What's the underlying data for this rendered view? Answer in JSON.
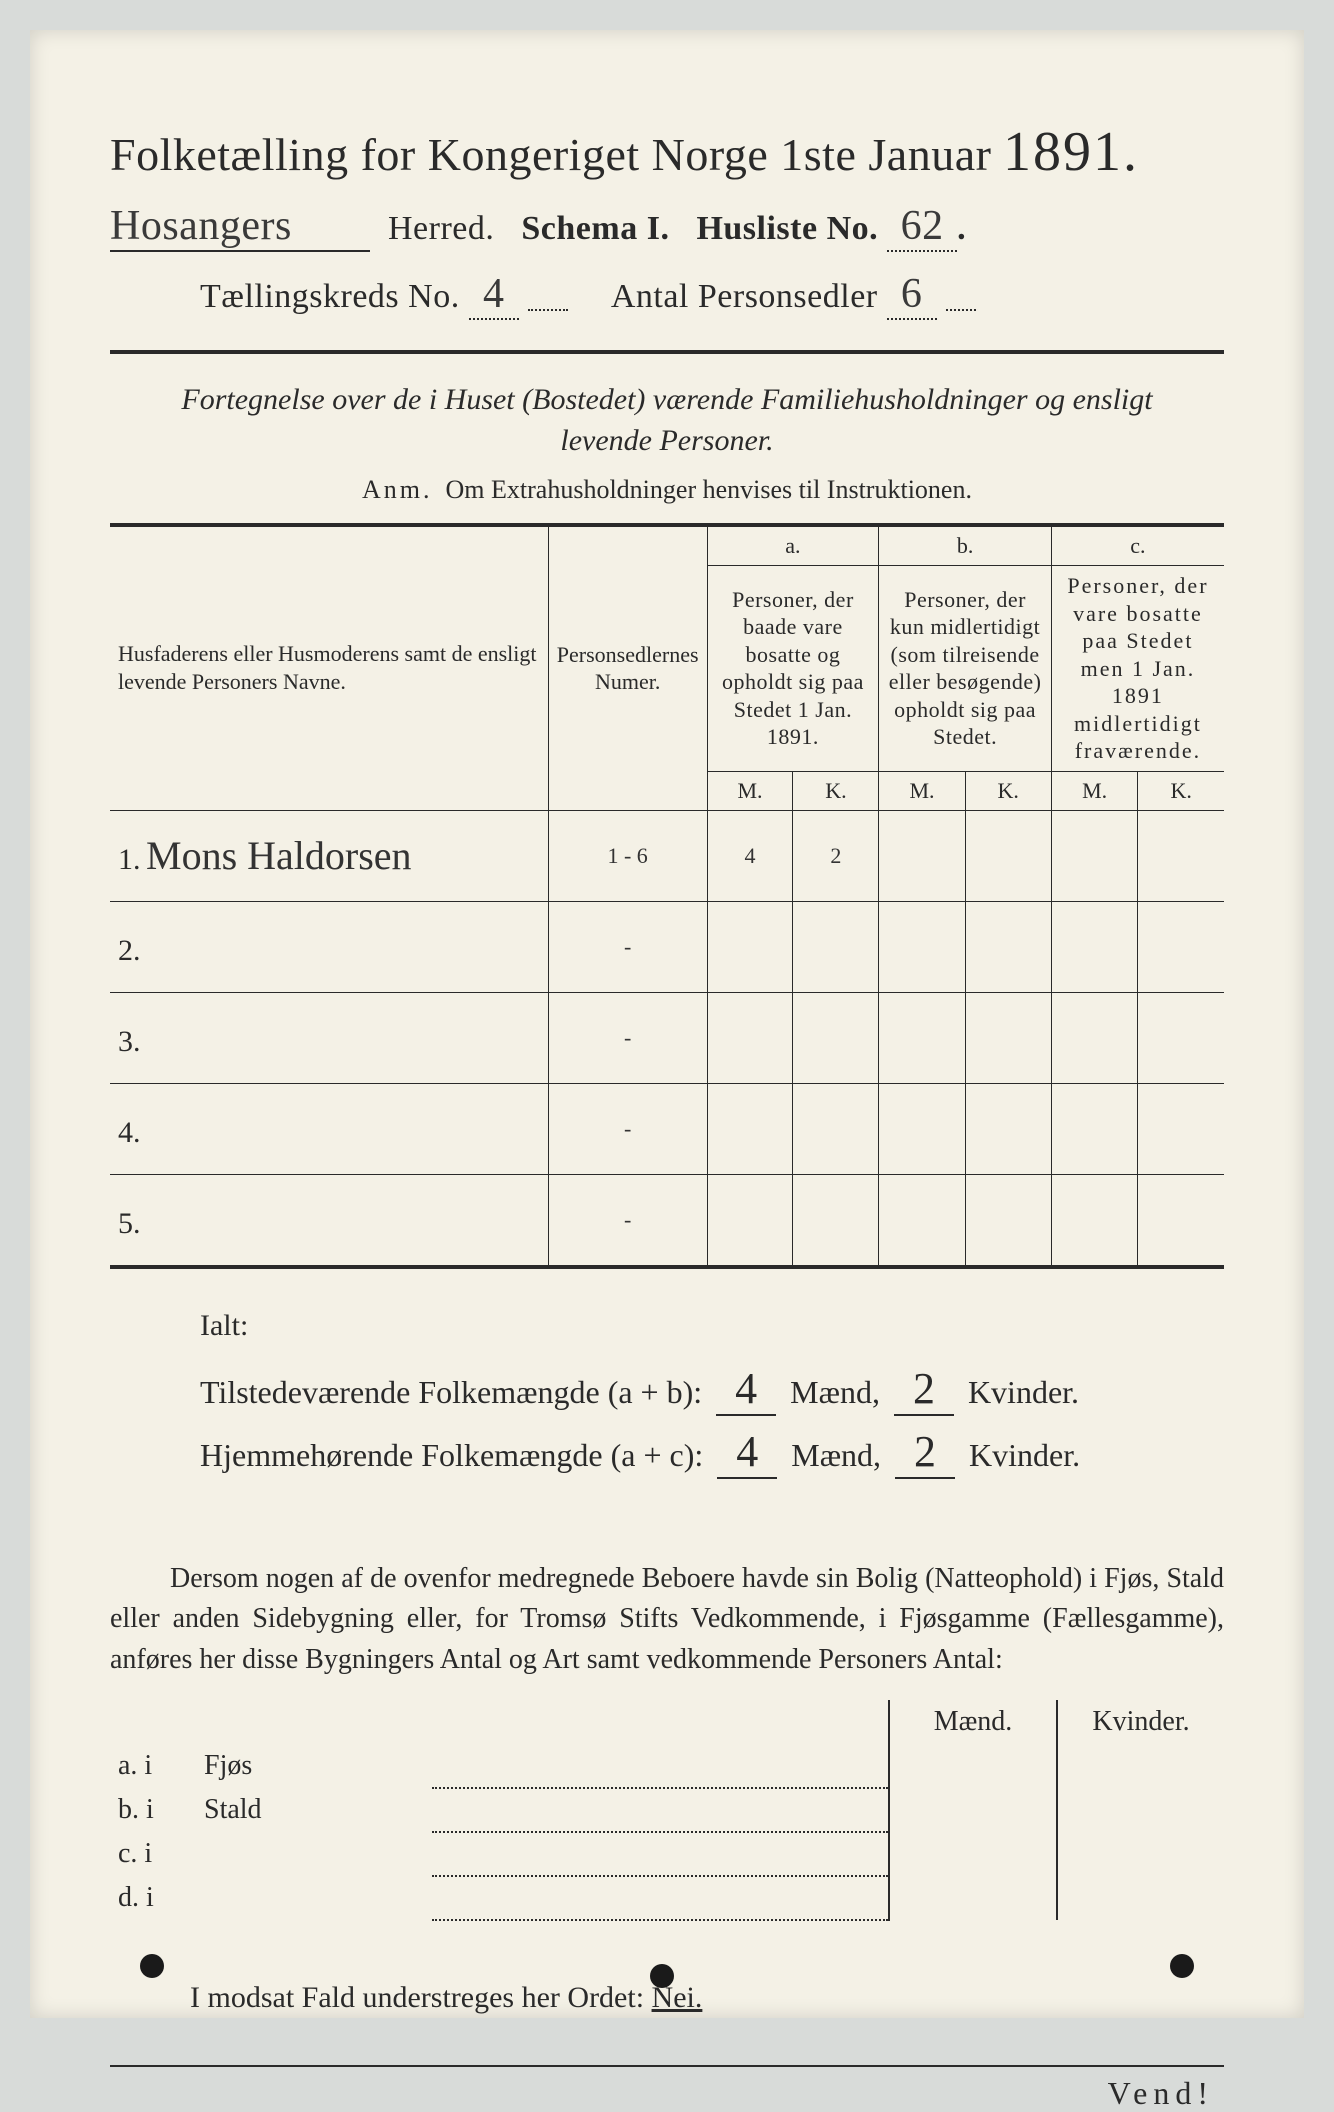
{
  "header": {
    "title_pre": "Folketælling for Kongeriget Norge 1ste Januar",
    "year": "1891.",
    "herred_handwritten": "Hosangers",
    "herred_label": "Herred.",
    "schema_label": "Schema I.",
    "husliste_label": "Husliste No.",
    "husliste_no": "62",
    "kreds_label": "Tællingskreds No.",
    "kreds_no": "4",
    "antal_label": "Antal Personsedler",
    "antal_no": "6"
  },
  "subheading": {
    "italic_line1": "Fortegnelse over de i Huset (Bostedet) værende Familiehusholdninger og ensligt",
    "italic_line2": "levende Personer.",
    "anm_label": "Anm.",
    "anm_text": "Om Extrahusholdninger henvises til Instruktionen."
  },
  "table": {
    "col_name": "Husfaderens eller Husmoderens samt de ensligt levende Personers Navne.",
    "col_num": "Personsedlernes Numer.",
    "a_label": "a.",
    "a_text": "Personer, der baade vare bosatte og opholdt sig paa Stedet 1 Jan. 1891.",
    "b_label": "b.",
    "b_text": "Personer, der kun midlertidigt (som tilreisende eller besøgende) opholdt sig paa Stedet.",
    "c_label": "c.",
    "c_text": "Personer, der vare bosatte paa Stedet men 1 Jan. 1891 midlertidigt fraværende.",
    "M": "M.",
    "K": "K.",
    "rows": [
      {
        "n": "1.",
        "name": "Mons Haldorsen",
        "num": "1 - 6",
        "aM": "4",
        "aK": "2",
        "bM": "",
        "bK": "",
        "cM": "",
        "cK": ""
      },
      {
        "n": "2.",
        "name": "",
        "num": "-",
        "aM": "",
        "aK": "",
        "bM": "",
        "bK": "",
        "cM": "",
        "cK": ""
      },
      {
        "n": "3.",
        "name": "",
        "num": "-",
        "aM": "",
        "aK": "",
        "bM": "",
        "bK": "",
        "cM": "",
        "cK": ""
      },
      {
        "n": "4.",
        "name": "",
        "num": "-",
        "aM": "",
        "aK": "",
        "bM": "",
        "bK": "",
        "cM": "",
        "cK": ""
      },
      {
        "n": "5.",
        "name": "",
        "num": "-",
        "aM": "",
        "aK": "",
        "bM": "",
        "bK": "",
        "cM": "",
        "cK": ""
      }
    ]
  },
  "ialt": {
    "label": "Ialt:",
    "line1_pre": "Tilstedeværende Folkemængde (a + b):",
    "line1_m": "4",
    "maend": "Mænd,",
    "line1_k": "2",
    "kvinder": "Kvinder.",
    "line2_pre": "Hjemmehørende Folkemængde (a + c):",
    "line2_m": "4",
    "line2_k": "2"
  },
  "para": {
    "text": "Dersom nogen af de ovenfor medregnede Beboere havde sin Bolig (Natteophold) i Fjøs, Stald eller anden Sidebygning eller, for Tromsø Stifts Vedkommende, i Fjøsgamme (Fællesgamme), anføres her disse Bygningers Antal og Art samt vedkommende Personers Antal:"
  },
  "bt": {
    "maend": "Mænd.",
    "kvinder": "Kvinder.",
    "rows": [
      {
        "k": "a.  i",
        "label": "Fjøs"
      },
      {
        "k": "b.  i",
        "label": "Stald"
      },
      {
        "k": "c.  i",
        "label": ""
      },
      {
        "k": "d.  i",
        "label": ""
      }
    ]
  },
  "modsat": {
    "text": "I modsat Fald understreges her Ordet:",
    "nei": "Nei."
  },
  "vend": "Vend!"
}
